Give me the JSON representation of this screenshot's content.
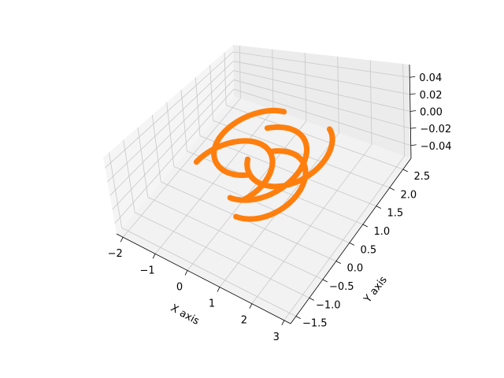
{
  "chart_data": {
    "type": "scatter",
    "projection": "3d",
    "xlabel": "X axis",
    "ylabel": "Y axis",
    "zlabel": "",
    "xlim": [
      -2.2,
      3.2
    ],
    "ylim": [
      -1.7,
      2.8
    ],
    "zlim": [
      -0.055,
      0.055
    ],
    "x_ticks": [
      -2,
      -1,
      0,
      1,
      2,
      3
    ],
    "x_tick_labels": [
      "−2",
      "−1",
      "0",
      "1",
      "2",
      "3"
    ],
    "y_ticks": [
      -1.5,
      -1.0,
      -0.5,
      0.0,
      0.5,
      1.0,
      1.5,
      2.0,
      2.5
    ],
    "y_tick_labels": [
      "−1.5",
      "−1.0",
      "−0.5",
      "0.0",
      "0.5",
      "1.0",
      "1.5",
      "2.0",
      "2.5"
    ],
    "z_ticks": [
      -0.04,
      -0.02,
      0.0,
      0.02,
      0.04
    ],
    "z_tick_labels": [
      "−0.04",
      "−0.02",
      "0.00",
      "0.02",
      "0.04"
    ],
    "grid": true,
    "color": "#ff7f0e",
    "series": [
      {
        "arc": {
          "cx": 0.0,
          "cy": 0.0,
          "r": 1.0,
          "start_deg": -30,
          "end_deg": 180
        }
      },
      {
        "arc": {
          "cx": 1.0,
          "cy": 1.0,
          "r": 1.0,
          "start_deg": 210,
          "end_deg": 420
        }
      },
      {
        "arc": {
          "cx": 0.0,
          "cy": 1.0,
          "r": 1.0,
          "start_deg": 90,
          "end_deg": 300
        }
      },
      {
        "arc": {
          "cx": 1.0,
          "cy": 0.0,
          "r": 1.0,
          "start_deg": -90,
          "end_deg": 120
        }
      },
      {
        "arc": {
          "cx": 0.5,
          "cy": 0.5,
          "r": 1.1,
          "start_deg": 270,
          "end_deg": 480
        }
      }
    ]
  }
}
